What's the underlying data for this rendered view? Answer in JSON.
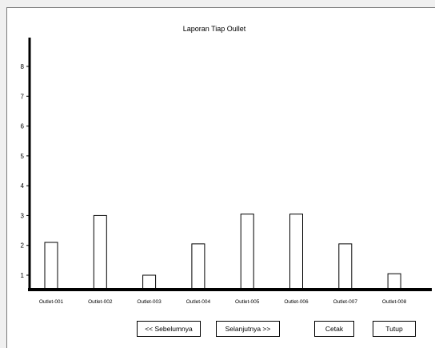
{
  "chart_data": {
    "type": "bar",
    "title": "Laporan Tiap Oullet",
    "categories": [
      "Outlet-001",
      "Outlet-002",
      "Outlet-003",
      "Outlet-004",
      "Outlet-005",
      "Outlet-006",
      "Outlet-007",
      "Outlet-008"
    ],
    "values": [
      2.1,
      3.0,
      1.0,
      2.05,
      3.05,
      3.05,
      2.05,
      1.05
    ],
    "yticks": [
      1,
      2,
      3,
      4,
      5,
      6,
      7,
      8
    ],
    "ylim": [
      0.5,
      9
    ],
    "xlabel": "",
    "ylabel": "",
    "grid": false,
    "bar_fill": "#ffffff",
    "bar_stroke": "#000000"
  },
  "buttons": {
    "prev": "<< Sebelumnya",
    "next": "Selanjutnya >>",
    "print": "Cetak",
    "close": "Tutup"
  }
}
